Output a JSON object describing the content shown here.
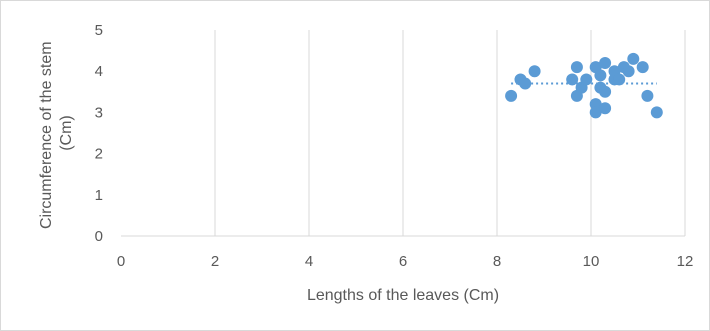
{
  "chart_data": {
    "type": "scatter",
    "title": "",
    "xlabel": "Lengths of the leaves (Cm)",
    "ylabel_lines": [
      "Circumference of the stem",
      "(Cm)"
    ],
    "xlim": [
      0,
      12
    ],
    "ylim": [
      0,
      5
    ],
    "x_ticks": [
      0,
      2,
      4,
      6,
      8,
      10,
      12
    ],
    "y_ticks": [
      0,
      1,
      2,
      3,
      4,
      5
    ],
    "grid": "vertical major gridlines on",
    "legend": "none",
    "marker_color": "#5b9bd5",
    "trendline": {
      "type": "linear",
      "style": "dotted",
      "x_range": [
        8.3,
        11.4
      ],
      "y_values": [
        3.7,
        3.7
      ],
      "color": "#5b9bd5"
    },
    "points": [
      {
        "x": 8.3,
        "y": 3.4
      },
      {
        "x": 8.5,
        "y": 3.8
      },
      {
        "x": 8.6,
        "y": 3.7
      },
      {
        "x": 8.8,
        "y": 4.0
      },
      {
        "x": 9.6,
        "y": 3.8
      },
      {
        "x": 9.7,
        "y": 4.1
      },
      {
        "x": 9.7,
        "y": 3.4
      },
      {
        "x": 9.8,
        "y": 3.6
      },
      {
        "x": 9.9,
        "y": 3.8
      },
      {
        "x": 10.1,
        "y": 4.1
      },
      {
        "x": 10.1,
        "y": 3.2
      },
      {
        "x": 10.1,
        "y": 3.0
      },
      {
        "x": 10.2,
        "y": 3.9
      },
      {
        "x": 10.2,
        "y": 3.6
      },
      {
        "x": 10.3,
        "y": 4.2
      },
      {
        "x": 10.3,
        "y": 3.5
      },
      {
        "x": 10.3,
        "y": 3.1
      },
      {
        "x": 10.5,
        "y": 3.8
      },
      {
        "x": 10.5,
        "y": 4.0
      },
      {
        "x": 10.6,
        "y": 3.8
      },
      {
        "x": 10.7,
        "y": 4.1
      },
      {
        "x": 10.8,
        "y": 4.0
      },
      {
        "x": 10.9,
        "y": 4.3
      },
      {
        "x": 11.1,
        "y": 4.1
      },
      {
        "x": 11.2,
        "y": 3.4
      },
      {
        "x": 11.4,
        "y": 3.0
      }
    ]
  }
}
